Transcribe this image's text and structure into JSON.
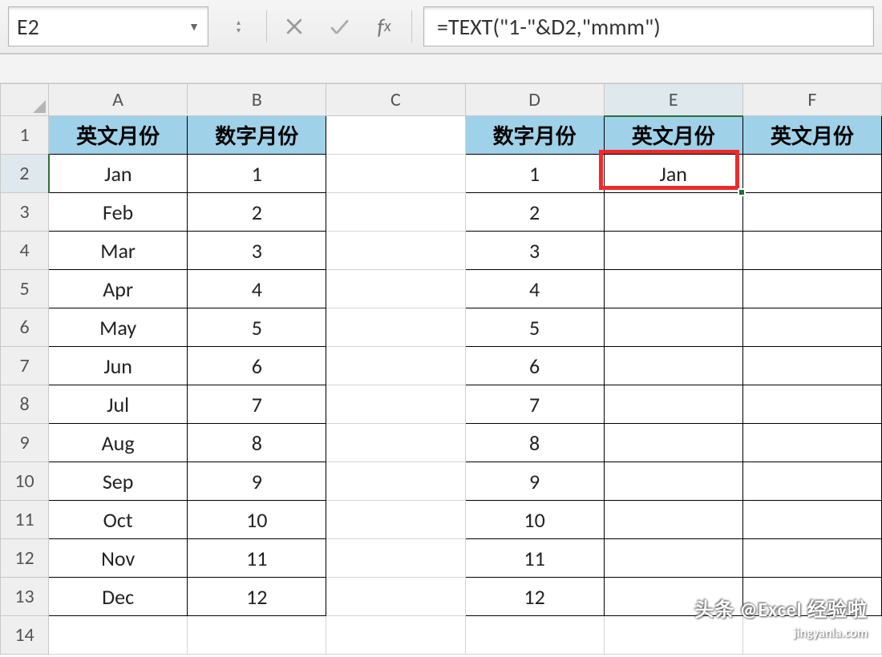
{
  "formula_bar": {
    "cell_ref": "E2",
    "formula": "=TEXT(\"1-\"&D2,\"mmm\")"
  },
  "columns": [
    "A",
    "B",
    "C",
    "D",
    "E",
    "F"
  ],
  "rows": [
    "1",
    "2",
    "3",
    "4",
    "5",
    "6",
    "7",
    "8",
    "9",
    "10",
    "11",
    "12",
    "13",
    "14"
  ],
  "headers": {
    "A": "英文月份",
    "B": "数字月份",
    "D": "数字月份",
    "E": "英文月份",
    "F": "英文月份"
  },
  "colA": [
    "Jan",
    "Feb",
    "Mar",
    "Apr",
    "May",
    "Jun",
    "Jul",
    "Aug",
    "Sep",
    "Oct",
    "Nov",
    "Dec"
  ],
  "colB": [
    "1",
    "2",
    "3",
    "4",
    "5",
    "6",
    "7",
    "8",
    "9",
    "10",
    "11",
    "12"
  ],
  "colD": [
    "1",
    "2",
    "3",
    "4",
    "5",
    "6",
    "7",
    "8",
    "9",
    "10",
    "11",
    "12"
  ],
  "colE": {
    "r2": "Jan"
  },
  "style": {
    "header_bg": "#9fd1e8",
    "header_fg": "#000000",
    "cell_border": "#000000",
    "grid_border": "#d4d4d4",
    "rowcol_hdr_bg": "#efefef",
    "highlight_border": "#ec2a2a",
    "active_col": "E",
    "active_row": 2,
    "selection_hdr_bg": "#dfe8ed"
  },
  "watermark": {
    "line1": "头条 @Excel 经验啦",
    "line2": "jingyanla.com"
  }
}
